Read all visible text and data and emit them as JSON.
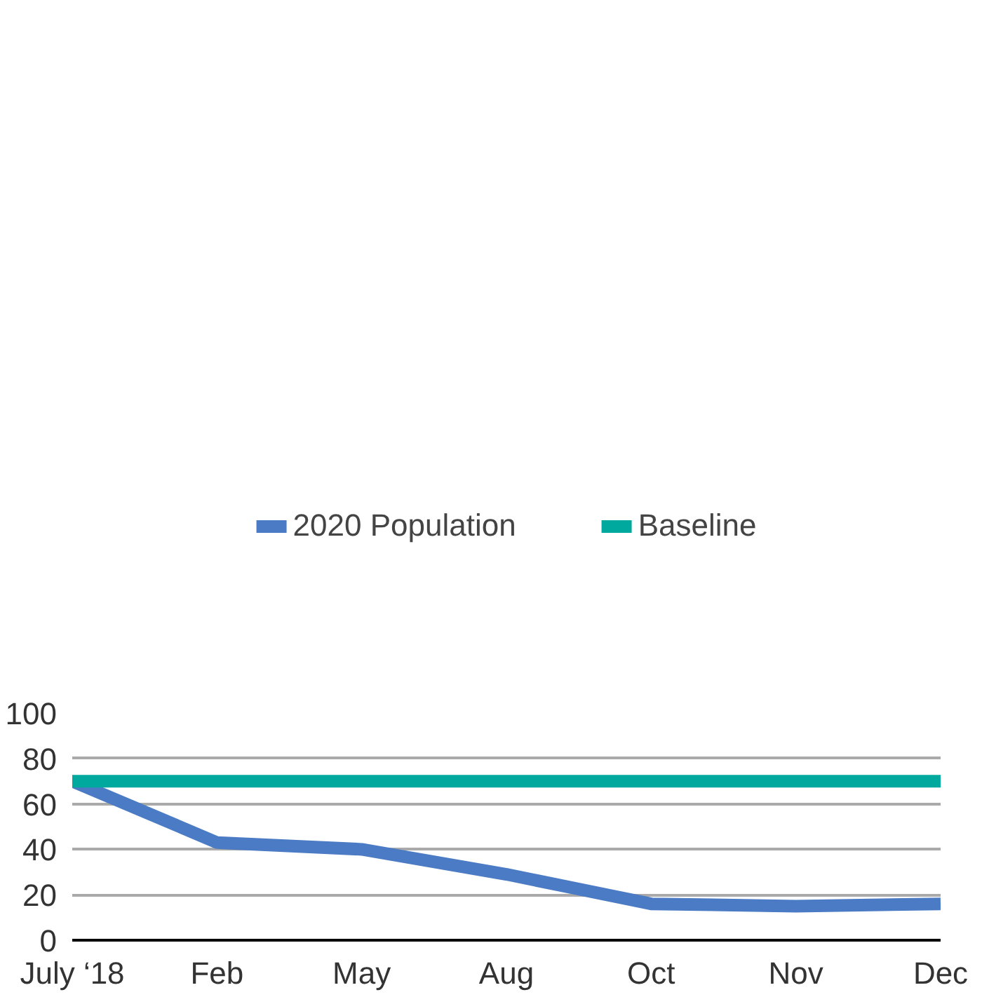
{
  "chart_data": {
    "type": "line",
    "categories": [
      "July ‘18",
      "Feb",
      "May",
      "Aug",
      "Oct",
      "Nov",
      "Dec"
    ],
    "series": [
      {
        "name": "2020 Population",
        "color": "#4a7bc4",
        "values": [
          70,
          43,
          40,
          29,
          16,
          15,
          16
        ]
      },
      {
        "name": "Baseline",
        "color": "#00a99d",
        "values": [
          70,
          70,
          70,
          70,
          70,
          70,
          70
        ]
      }
    ],
    "ylim": [
      0,
      100
    ],
    "yticks": [
      0,
      20,
      40,
      60,
      80,
      100
    ],
    "grid": "y",
    "legend": "top",
    "marker": "none",
    "line_style": "solid"
  }
}
